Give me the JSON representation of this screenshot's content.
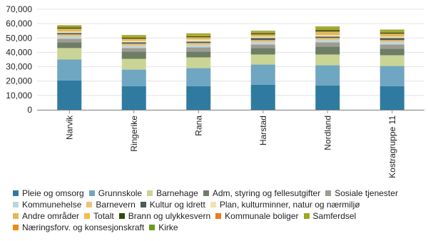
{
  "chart_data": {
    "type": "stacked-bar",
    "categories": [
      "Narvik",
      "Ringerike",
      "Rana",
      "Harstad",
      "Nordland",
      "Kostragruppe 11"
    ],
    "ylim": [
      0,
      70000
    ],
    "yticks": [
      0,
      {
        "value": 10000,
        "label": "10,000"
      },
      {
        "value": 20000,
        "label": "20,000"
      },
      {
        "value": 30000,
        "label": "30,000"
      },
      {
        "value": 40000,
        "label": "40,000"
      },
      {
        "value": 50000,
        "label": "50,000"
      },
      {
        "value": 60000,
        "label": "60,000"
      },
      {
        "value": 70000,
        "label": "70,000"
      }
    ],
    "grid": true,
    "legend": "bottom",
    "series": [
      {
        "name": "Pleie og omsorg",
        "color": "#2f7ba0",
        "values": [
          20500,
          16500,
          16500,
          17500,
          17000,
          16500
        ]
      },
      {
        "name": "Grunnskole",
        "color": "#6fa6c2",
        "values": [
          14500,
          11500,
          12500,
          14000,
          14000,
          14000
        ]
      },
      {
        "name": "Barnehage",
        "color": "#cad595",
        "values": [
          8000,
          7500,
          7500,
          7000,
          7500,
          7500
        ]
      },
      {
        "name": "Adm, styring og fellesutgifter",
        "color": "#6e7d66",
        "values": [
          4000,
          5000,
          4000,
          4500,
          5500,
          4500
        ]
      },
      {
        "name": "Sosiale tjenester",
        "color": "#9c9c92",
        "values": [
          2500,
          2500,
          3000,
          2500,
          3000,
          3000
        ]
      },
      {
        "name": "Kommunehelse",
        "color": "#bcd6dd",
        "values": [
          1500,
          1500,
          1500,
          1500,
          1500,
          1500
        ]
      },
      {
        "name": "Barnevern",
        "color": "#e9c27c",
        "values": [
          1500,
          1500,
          1500,
          1500,
          1500,
          1500
        ]
      },
      {
        "name": "Kultur og idrett",
        "color": "#4b5a5a",
        "values": [
          1000,
          1000,
          1000,
          1500,
          1000,
          1500
        ]
      },
      {
        "name": "Plan, kulturminner, natur og nærmiljø",
        "color": "#f1e2b4",
        "values": [
          1000,
          1000,
          1500,
          1000,
          1000,
          1000
        ]
      },
      {
        "name": "Andre områder",
        "color": "#e0b95c",
        "values": [
          2000,
          1500,
          1500,
          1500,
          2500,
          2000
        ]
      },
      {
        "name": "Totalt",
        "color": "#f9b94c",
        "values": [
          0,
          0,
          0,
          0,
          0,
          0
        ]
      },
      {
        "name": "Brann og ulykkesvern",
        "color": "#2f4b10",
        "values": [
          800,
          700,
          700,
          800,
          1000,
          800
        ]
      },
      {
        "name": "Kommunale boliger",
        "color": "#ef7a1c",
        "values": [
          200,
          200,
          300,
          200,
          300,
          200
        ]
      },
      {
        "name": "Samferdsel",
        "color": "#9ba91c",
        "values": [
          600,
          800,
          1000,
          700,
          1500,
          1000
        ]
      },
      {
        "name": "Næringsforv. og konsesjonskraft",
        "color": "#f08b12",
        "values": [
          200,
          300,
          200,
          300,
          200,
          200
        ]
      },
      {
        "name": "Kirke",
        "color": "#6b9a1c",
        "values": [
          500,
          500,
          500,
          500,
          500,
          600
        ]
      }
    ]
  }
}
